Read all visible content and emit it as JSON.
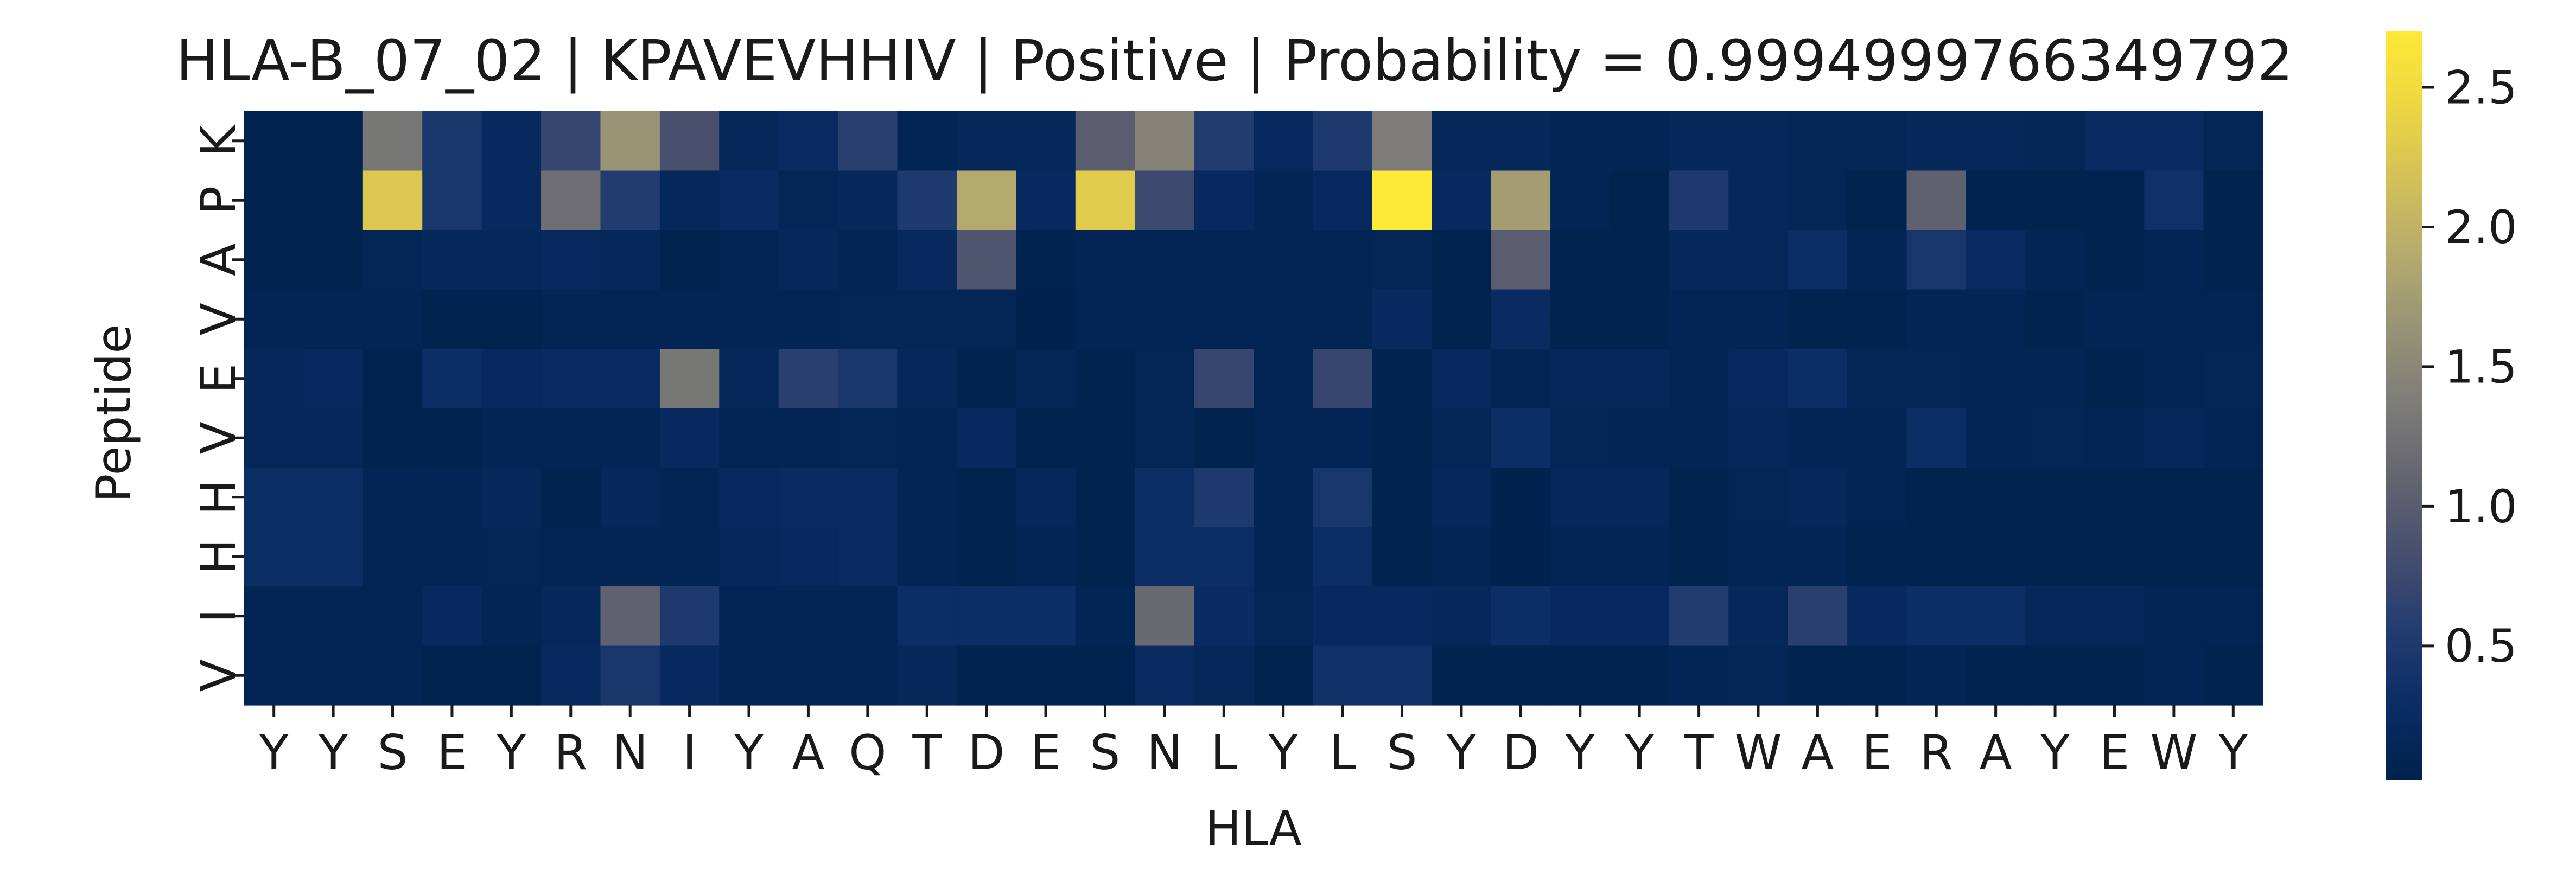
{
  "chart_data": {
    "type": "heatmap",
    "title": "HLA-B_07_02 | KPAVEVHHIV | Positive | Probability = 0.9994999766349792",
    "xlabel": "HLA",
    "ylabel": "Peptide",
    "x_labels": [
      "Y",
      "Y",
      "S",
      "E",
      "Y",
      "R",
      "N",
      "I",
      "Y",
      "A",
      "Q",
      "T",
      "D",
      "E",
      "S",
      "N",
      "L",
      "Y",
      "L",
      "S",
      "Y",
      "D",
      "Y",
      "Y",
      "T",
      "W",
      "A",
      "E",
      "R",
      "A",
      "Y",
      "E",
      "W",
      "Y"
    ],
    "y_labels": [
      "K",
      "P",
      "A",
      "V",
      "E",
      "V",
      "H",
      "H",
      "I",
      "V"
    ],
    "colormap": "cividis",
    "colorbar": {
      "min": 0.02,
      "max": 2.7,
      "ticks": [
        0.5,
        1.0,
        1.5,
        2.0,
        2.5
      ],
      "tick_labels": [
        "0.5",
        "1.0",
        "1.5",
        "2.0",
        "2.5"
      ]
    },
    "values": [
      [
        0.05,
        0.05,
        1.3,
        0.45,
        0.2,
        0.7,
        1.65,
        0.85,
        0.15,
        0.25,
        0.6,
        0.1,
        0.15,
        0.15,
        1.0,
        1.45,
        0.55,
        0.2,
        0.5,
        1.35,
        0.15,
        0.15,
        0.1,
        0.1,
        0.15,
        0.15,
        0.12,
        0.12,
        0.15,
        0.15,
        0.12,
        0.25,
        0.25,
        0.12
      ],
      [
        0.05,
        0.05,
        2.25,
        0.45,
        0.2,
        1.2,
        0.55,
        0.15,
        0.25,
        0.12,
        0.15,
        0.5,
        1.9,
        0.2,
        2.3,
        0.75,
        0.2,
        0.1,
        0.2,
        2.7,
        0.2,
        1.75,
        0.1,
        0.05,
        0.5,
        0.15,
        0.12,
        0.05,
        1.05,
        0.05,
        0.05,
        0.05,
        0.35,
        0.05
      ],
      [
        0.05,
        0.05,
        0.12,
        0.15,
        0.15,
        0.2,
        0.15,
        0.05,
        0.1,
        0.15,
        0.1,
        0.2,
        0.9,
        0.05,
        0.1,
        0.1,
        0.1,
        0.1,
        0.1,
        0.12,
        0.05,
        1.0,
        0.05,
        0.05,
        0.15,
        0.15,
        0.3,
        0.1,
        0.45,
        0.25,
        0.1,
        0.05,
        0.1,
        0.05
      ],
      [
        0.1,
        0.1,
        0.1,
        0.05,
        0.05,
        0.1,
        0.1,
        0.1,
        0.1,
        0.1,
        0.12,
        0.12,
        0.12,
        0.02,
        0.1,
        0.1,
        0.1,
        0.1,
        0.1,
        0.2,
        0.05,
        0.25,
        0.05,
        0.05,
        0.1,
        0.1,
        0.05,
        0.05,
        0.1,
        0.1,
        0.05,
        0.1,
        0.1,
        0.1
      ],
      [
        0.15,
        0.2,
        0.05,
        0.3,
        0.2,
        0.25,
        0.25,
        1.3,
        0.15,
        0.6,
        0.45,
        0.15,
        0.05,
        0.12,
        0.05,
        0.12,
        0.7,
        0.1,
        0.7,
        0.05,
        0.2,
        0.1,
        0.15,
        0.15,
        0.1,
        0.2,
        0.3,
        0.12,
        0.12,
        0.1,
        0.1,
        0.05,
        0.1,
        0.12
      ],
      [
        0.15,
        0.15,
        0.05,
        0.05,
        0.1,
        0.1,
        0.1,
        0.2,
        0.1,
        0.1,
        0.12,
        0.1,
        0.2,
        0.05,
        0.05,
        0.12,
        0.05,
        0.1,
        0.1,
        0.05,
        0.12,
        0.3,
        0.12,
        0.1,
        0.1,
        0.15,
        0.1,
        0.1,
        0.3,
        0.1,
        0.12,
        0.1,
        0.15,
        0.1
      ],
      [
        0.3,
        0.3,
        0.1,
        0.1,
        0.15,
        0.05,
        0.15,
        0.1,
        0.2,
        0.25,
        0.25,
        0.1,
        0.05,
        0.15,
        0.05,
        0.3,
        0.5,
        0.1,
        0.45,
        0.05,
        0.15,
        0.02,
        0.15,
        0.15,
        0.05,
        0.12,
        0.15,
        0.1,
        0.05,
        0.05,
        0.05,
        0.05,
        0.05,
        0.05
      ],
      [
        0.3,
        0.3,
        0.1,
        0.1,
        0.12,
        0.1,
        0.1,
        0.1,
        0.15,
        0.2,
        0.25,
        0.1,
        0.05,
        0.1,
        0.05,
        0.3,
        0.3,
        0.1,
        0.3,
        0.05,
        0.1,
        0.02,
        0.1,
        0.1,
        0.05,
        0.1,
        0.1,
        0.05,
        0.05,
        0.05,
        0.05,
        0.05,
        0.05,
        0.05
      ],
      [
        0.1,
        0.1,
        0.1,
        0.2,
        0.1,
        0.15,
        1.05,
        0.5,
        0.1,
        0.1,
        0.1,
        0.3,
        0.3,
        0.3,
        0.1,
        1.15,
        0.25,
        0.12,
        0.2,
        0.2,
        0.15,
        0.3,
        0.2,
        0.2,
        0.55,
        0.15,
        0.6,
        0.2,
        0.3,
        0.3,
        0.15,
        0.15,
        0.1,
        0.1
      ],
      [
        0.1,
        0.1,
        0.1,
        0.05,
        0.05,
        0.2,
        0.45,
        0.2,
        0.1,
        0.1,
        0.1,
        0.15,
        0.05,
        0.05,
        0.05,
        0.25,
        0.15,
        0.05,
        0.35,
        0.35,
        0.05,
        0.05,
        0.05,
        0.05,
        0.1,
        0.12,
        0.05,
        0.05,
        0.1,
        0.05,
        0.05,
        0.05,
        0.1,
        0.05
      ]
    ]
  }
}
